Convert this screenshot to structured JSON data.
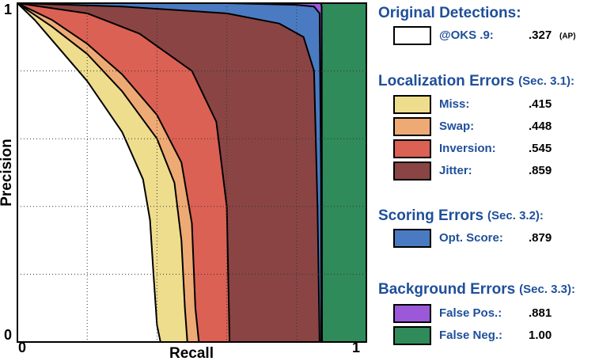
{
  "chart_data": {
    "type": "area",
    "x_label": "Recall",
    "y_label": "Precision",
    "xlim": [
      0,
      1
    ],
    "ylim": [
      0,
      1
    ],
    "xticks": [
      0,
      1
    ],
    "yticks": [
      0,
      1
    ],
    "xgrid": [
      0.2,
      0.4,
      0.6,
      0.8
    ],
    "ygrid": [
      0.2,
      0.4,
      0.6,
      0.8
    ],
    "grid": true,
    "legend_headings": [
      {
        "title": "Original Detections:"
      },
      {
        "title": "Localization Errors",
        "section": "(Sec. 3.1):"
      },
      {
        "title": "Scoring Errors",
        "section": "(Sec. 3.2):"
      },
      {
        "title": "Background Errors",
        "section": "(Sec. 3.3):"
      }
    ],
    "ap_note": "(AP)",
    "series": [
      {
        "name": "@OKS .9:",
        "color": "#ffffff",
        "ap": 0.327,
        "ap_label": ".327",
        "x": [
          0,
          0.05,
          0.1,
          0.2,
          0.3,
          0.36,
          0.38,
          0.39,
          0.4,
          0.41
        ],
        "values": [
          1,
          0.95,
          0.89,
          0.77,
          0.62,
          0.48,
          0.36,
          0.2,
          0.05,
          0
        ]
      },
      {
        "name": "Miss:",
        "color": "#efdd8e",
        "ap": 0.415,
        "ap_label": ".415",
        "x": [
          0,
          0.1,
          0.2,
          0.3,
          0.4,
          0.45,
          0.47,
          0.48,
          0.487
        ],
        "values": [
          1,
          0.93,
          0.85,
          0.74,
          0.6,
          0.47,
          0.3,
          0.1,
          0
        ]
      },
      {
        "name": "Swap:",
        "color": "#eeaa74",
        "ap": 0.448,
        "ap_label": ".448",
        "x": [
          0,
          0.1,
          0.2,
          0.3,
          0.4,
          0.47,
          0.5,
          0.51,
          0.52
        ],
        "values": [
          1,
          0.95,
          0.88,
          0.79,
          0.67,
          0.53,
          0.35,
          0.1,
          0
        ]
      },
      {
        "name": "Inversion:",
        "color": "#db6154",
        "ap": 0.545,
        "ap_label": ".545",
        "x": [
          0,
          0.2,
          0.35,
          0.5,
          0.57,
          0.6,
          0.605,
          0.608
        ],
        "values": [
          1,
          0.97,
          0.91,
          0.8,
          0.65,
          0.4,
          0.15,
          0
        ]
      },
      {
        "name": "Jitter:",
        "color": "#8a4444",
        "ap": 0.859,
        "ap_label": ".859",
        "x": [
          0,
          0.3,
          0.6,
          0.75,
          0.82,
          0.85,
          0.86,
          0.866
        ],
        "values": [
          1,
          0.99,
          0.97,
          0.94,
          0.9,
          0.8,
          0.4,
          0
        ]
      },
      {
        "name": "Opt. Score:",
        "color": "#4a7bc2",
        "ap": 0.879,
        "ap_label": ".879",
        "x": [
          0,
          0.6,
          0.8,
          0.85,
          0.866,
          0.87,
          0.871
        ],
        "values": [
          1,
          1,
          0.995,
          0.99,
          0.97,
          0.5,
          0
        ]
      },
      {
        "name": "False Pos.:",
        "color": "#9b59d9",
        "ap": 0.881,
        "ap_label": ".881",
        "x": [
          0,
          0.8,
          0.85,
          0.87,
          0.872,
          0.873
        ],
        "values": [
          1,
          1,
          1,
          1,
          0.99,
          0
        ]
      },
      {
        "name": "False Neg.:",
        "color": "#2f8b5a",
        "ap": 1,
        "ap_label": "1.00",
        "x": [
          0,
          1
        ],
        "values": [
          1,
          1
        ]
      }
    ]
  }
}
